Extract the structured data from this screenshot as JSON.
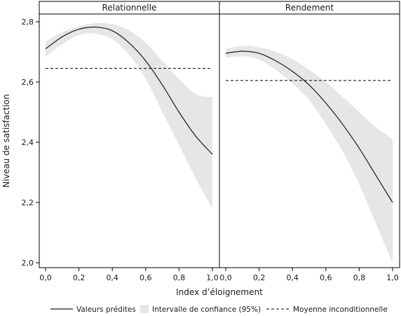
{
  "chart_data": {
    "type": "line",
    "xlabel": "Index d’éloignement",
    "ylabel": "Niveau de satisfaction",
    "xlim": [
      0,
      1
    ],
    "ylim": [
      2.0,
      2.8
    ],
    "x_ticks": [
      "0,0",
      "0,2",
      "0,4",
      "0,6",
      "0,8",
      "1,0"
    ],
    "y_ticks": [
      "2,0",
      "2,2",
      "2,4",
      "2,6",
      "2,8"
    ],
    "grid": false,
    "legend": {
      "position": "bottom",
      "items": [
        {
          "label": "Valeurs prédites",
          "kind": "line"
        },
        {
          "label": "Intervalle de confiance (95%)",
          "kind": "band"
        },
        {
          "label": "Moyenne inconditionnelle",
          "kind": "dashed"
        }
      ]
    },
    "colors": {
      "line": "#1a1a1a",
      "band": "#e6e6e6",
      "axis": "#000000"
    },
    "panels": [
      {
        "title": "Relationnelle",
        "mean": 2.645,
        "x": [
          0.0,
          0.1,
          0.2,
          0.3,
          0.4,
          0.5,
          0.6,
          0.7,
          0.8,
          0.9,
          1.0
        ],
        "predicted": [
          2.71,
          2.75,
          2.775,
          2.782,
          2.77,
          2.73,
          2.67,
          2.59,
          2.5,
          2.42,
          2.36
        ],
        "ci_upper": [
          2.735,
          2.765,
          2.785,
          2.795,
          2.792,
          2.772,
          2.73,
          2.67,
          2.61,
          2.56,
          2.55
        ],
        "ci_lower": [
          2.685,
          2.725,
          2.755,
          2.76,
          2.742,
          2.69,
          2.61,
          2.5,
          2.39,
          2.28,
          2.18
        ]
      },
      {
        "title": "Rendement",
        "mean": 2.605,
        "x": [
          0.0,
          0.1,
          0.2,
          0.3,
          0.4,
          0.5,
          0.6,
          0.7,
          0.8,
          0.9,
          1.0
        ],
        "predicted": [
          2.695,
          2.702,
          2.695,
          2.67,
          2.635,
          2.59,
          2.53,
          2.46,
          2.38,
          2.29,
          2.2
        ],
        "ci_upper": [
          2.71,
          2.72,
          2.715,
          2.7,
          2.675,
          2.64,
          2.6,
          2.55,
          2.5,
          2.45,
          2.41
        ],
        "ci_lower": [
          2.68,
          2.685,
          2.675,
          2.64,
          2.595,
          2.54,
          2.46,
          2.37,
          2.26,
          2.13,
          2.0
        ]
      }
    ]
  }
}
